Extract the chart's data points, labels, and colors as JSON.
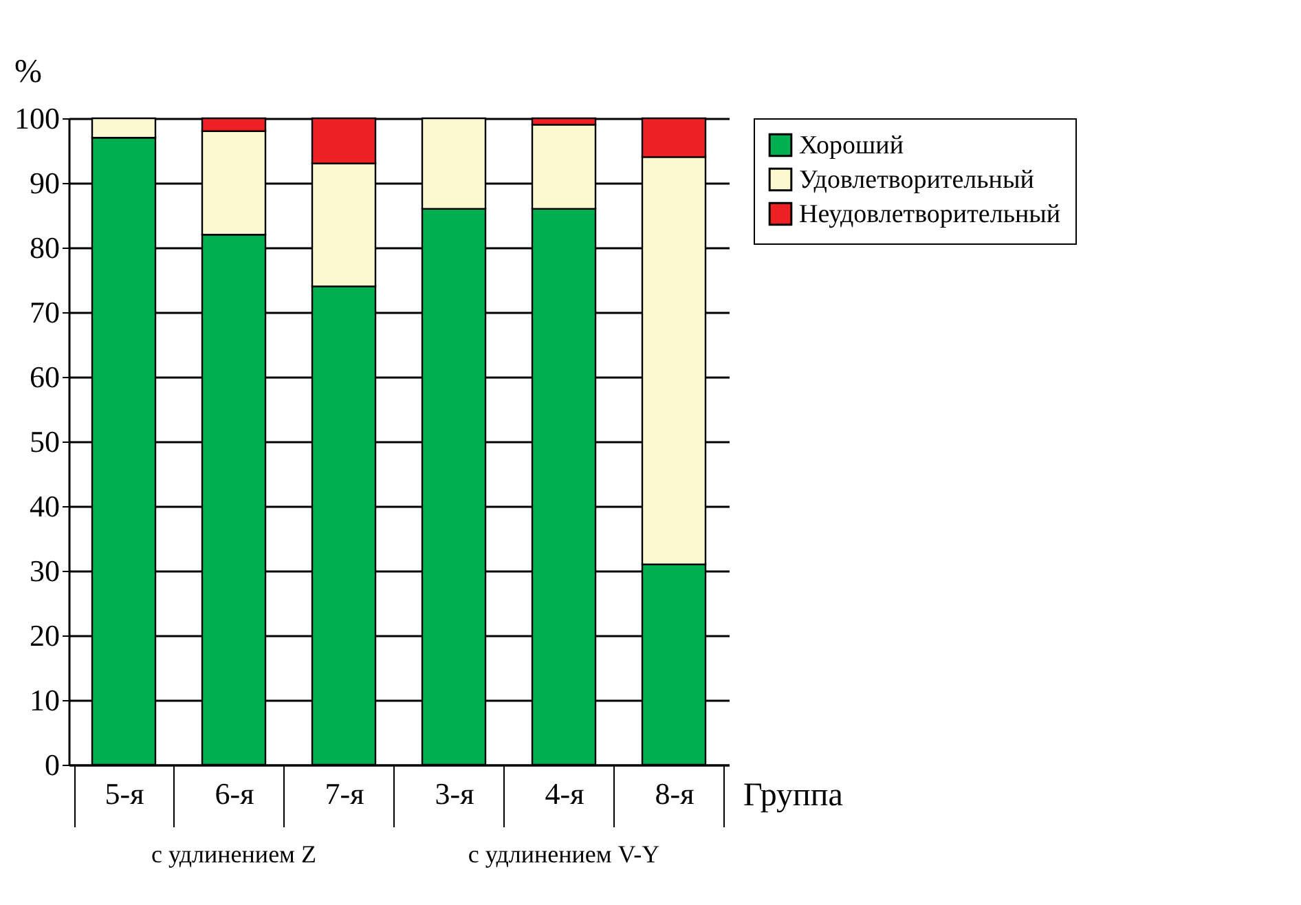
{
  "chart_data": {
    "type": "bar",
    "stacked": true,
    "ylabel": "%",
    "xlabel": "Группа",
    "categories": [
      "5-я",
      "6-я",
      "7-я",
      "3-я",
      "4-я",
      "8-я"
    ],
    "series": [
      {
        "name": "Хороший",
        "color": "#00b050",
        "values": [
          97,
          82,
          74,
          86,
          86,
          31
        ]
      },
      {
        "name": "Удовлетворительный",
        "color": "#fcf8d0",
        "values": [
          3,
          16,
          19,
          14,
          13,
          63
        ]
      },
      {
        "name": "Неудовлетворительный",
        "color": "#ee2024",
        "values": [
          0,
          2,
          7,
          0,
          1,
          6
        ]
      }
    ],
    "ylim": [
      0,
      100
    ],
    "yticks": [
      0,
      10,
      20,
      30,
      40,
      50,
      60,
      70,
      80,
      90,
      100
    ],
    "grid": "y",
    "legend": "right",
    "annotations": [
      "с удлинением Z",
      "с удлинением V-Y"
    ]
  }
}
